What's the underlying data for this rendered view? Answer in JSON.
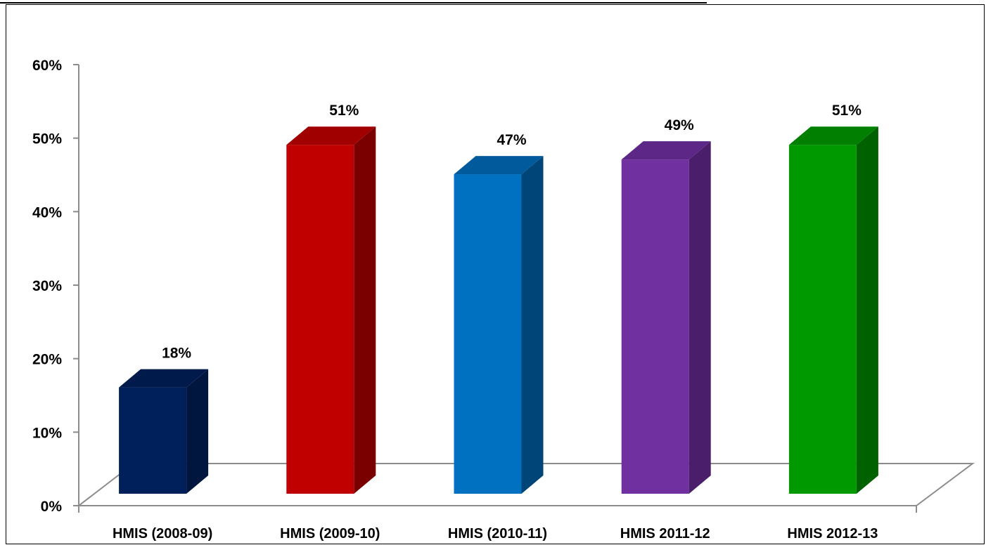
{
  "chart_data": {
    "type": "bar",
    "categories": [
      "HMIS (2008-09)",
      "HMIS (2009-10)",
      "HMIS (2010-11)",
      "HMIS 2011-12",
      "HMIS 2012-13"
    ],
    "values": [
      18,
      51,
      47,
      49,
      51
    ],
    "data_labels": [
      "18%",
      "51%",
      "47%",
      "49%",
      "51%"
    ],
    "colors": [
      "#00205b",
      "#c00000",
      "#0070c0",
      "#7030a0",
      "#009a00"
    ],
    "side_colors": [
      "#00163f",
      "#7a0000",
      "#004578",
      "#4a1e6b",
      "#006100"
    ],
    "top_colors": [
      "#001a4c",
      "#a00000",
      "#005a9c",
      "#5c2786",
      "#007f00"
    ],
    "ylim": [
      0,
      60
    ],
    "ytick_labels": [
      "0%",
      "10%",
      "20%",
      "30%",
      "40%",
      "50%",
      "60%"
    ],
    "grid": false,
    "legend": "none",
    "title": "",
    "xlabel": "",
    "ylabel": ""
  }
}
